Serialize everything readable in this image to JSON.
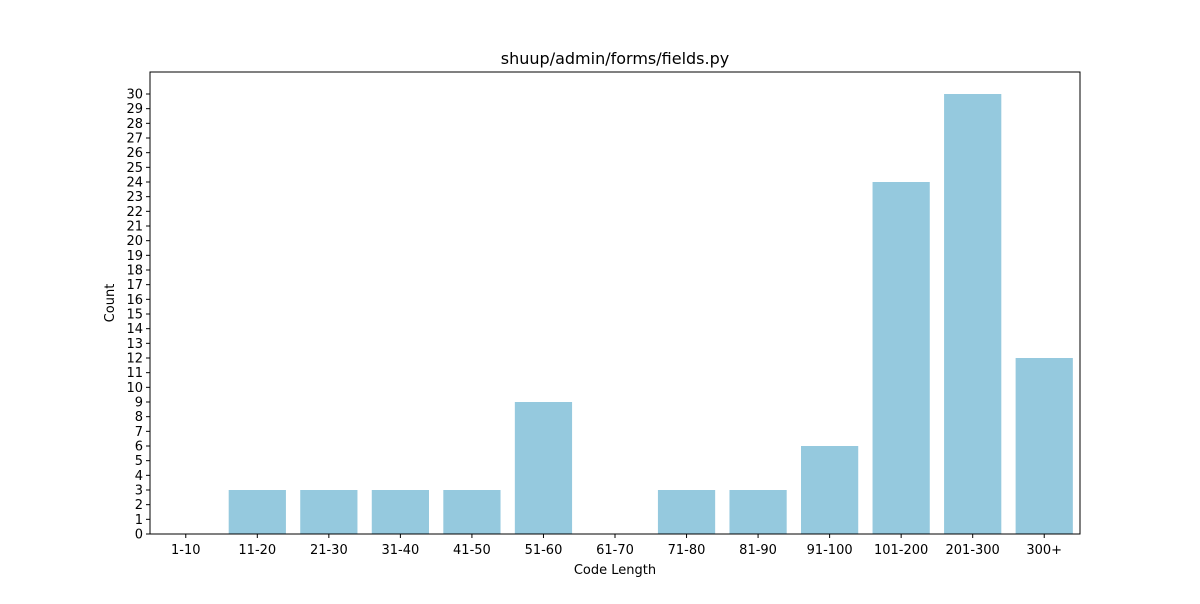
{
  "chart_data": {
    "type": "bar",
    "title": "shuup/admin/forms/fields.py",
    "xlabel": "Code Length",
    "ylabel": "Count",
    "categories": [
      "1-10",
      "11-20",
      "21-30",
      "31-40",
      "41-50",
      "51-60",
      "61-70",
      "71-80",
      "81-90",
      "91-100",
      "101-200",
      "201-300",
      "300+"
    ],
    "values": [
      0,
      3,
      3,
      3,
      3,
      9,
      0,
      3,
      3,
      6,
      24,
      30,
      12
    ],
    "ylim": [
      0,
      31.5
    ],
    "yticks": [
      0,
      1,
      2,
      3,
      4,
      5,
      6,
      7,
      8,
      9,
      10,
      11,
      12,
      13,
      14,
      15,
      16,
      17,
      18,
      19,
      20,
      21,
      22,
      23,
      24,
      25,
      26,
      27,
      28,
      29,
      30
    ],
    "grid": false,
    "bar_color": "#95c9de"
  }
}
